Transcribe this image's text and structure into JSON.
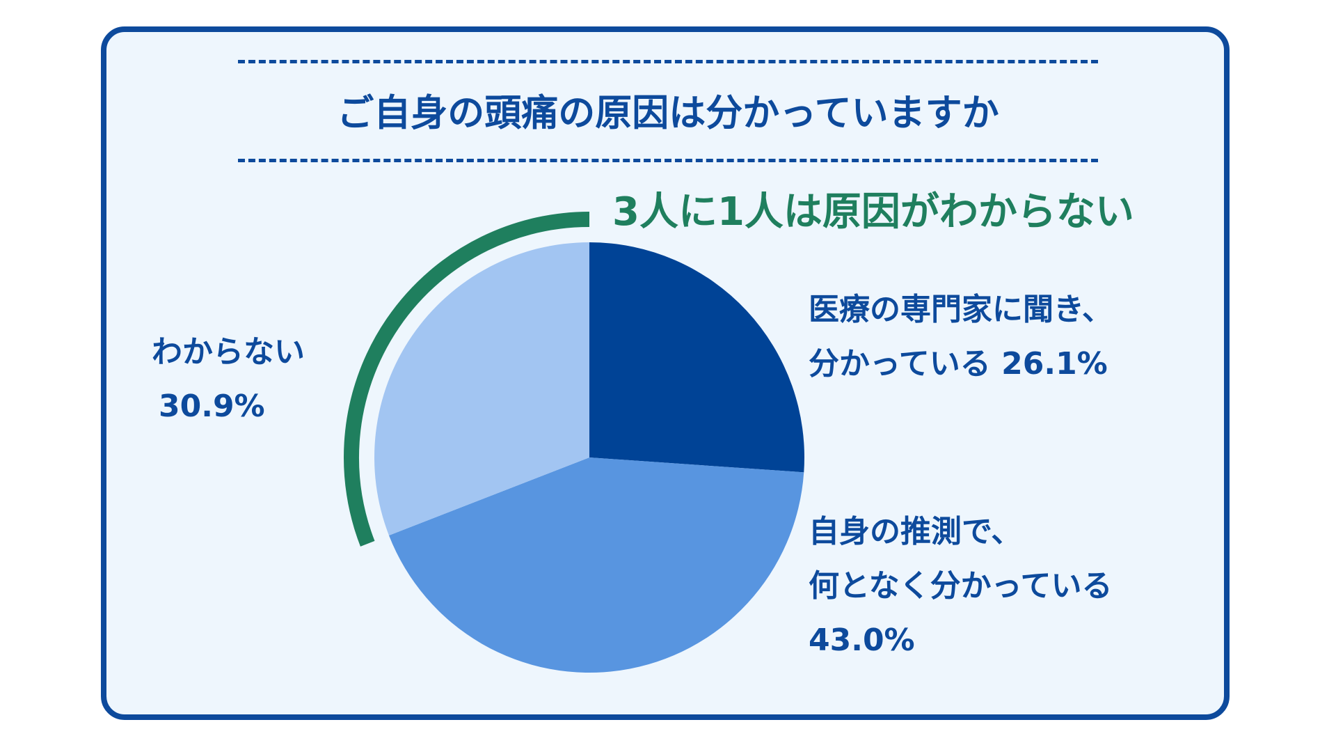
{
  "title": "ご自身の頭痛の原因は分かっていますか",
  "headline": "3人に1人は原因がわからない",
  "colors": {
    "border": "#0d4a9c",
    "background": "#eef6fd",
    "headline": "#1f7f5e",
    "text": "#0d4a9c"
  },
  "labels": {
    "known": {
      "line1": "医療の専門家に聞き、",
      "line2": "分かっている 26.1%"
    },
    "guess": {
      "line1": "自身の推測で、",
      "line2": "何となく分かっている",
      "line3": "43.0%"
    },
    "unknown": {
      "line1": "わからない",
      "line2": "30.9%"
    }
  },
  "chart_data": {
    "type": "pie",
    "title": "ご自身の頭痛の原因は分かっていますか",
    "categories": [
      "医療の専門家に聞き、分かっている",
      "自身の推測で、何となく分かっている",
      "わからない"
    ],
    "values": [
      26.1,
      43.0,
      30.9
    ],
    "unit": "%",
    "colors": [
      "#004396",
      "#5895e0",
      "#a2c5f2"
    ],
    "highlight": {
      "category": "わからない",
      "color": "#1f7f5e"
    }
  }
}
